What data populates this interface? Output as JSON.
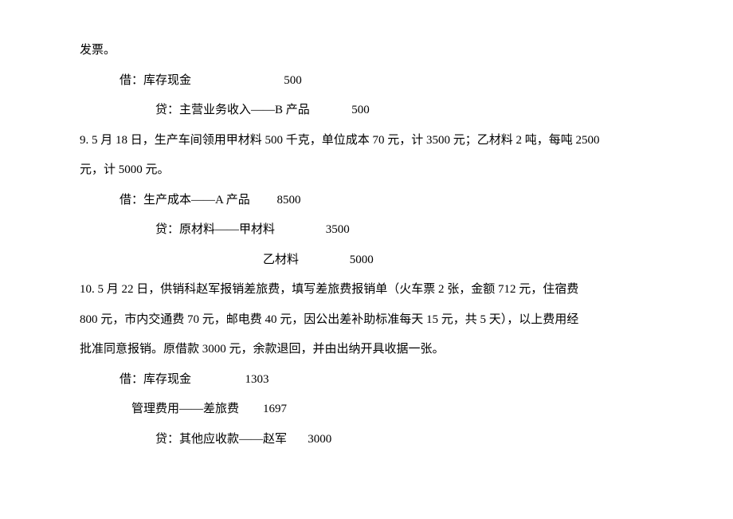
{
  "line1": "发票。",
  "entry_a": {
    "debit": {
      "label": "借：库存现金",
      "amount": "500"
    },
    "credit": {
      "label": "贷：主营业务收入——B 产品",
      "amount": "500"
    }
  },
  "line4": "9. 5 月 18 日，生产车间领用甲材料 500 千克，单位成本 70 元，计 3500 元；乙材料 2 吨，每吨 2500",
  "line5": "元，计 5000 元。",
  "entry_b": {
    "debit": {
      "label": "借：生产成本——A 产品",
      "amount": "8500"
    },
    "credit1": {
      "label": "贷：原材料——甲材料",
      "amount": "3500"
    },
    "credit2": {
      "label": "乙材料",
      "amount": "5000"
    }
  },
  "line9": "10. 5 月 22 日，供销科赵军报销差旅费，填写差旅费报销单（火车票 2 张，金额 712 元，住宿费",
  "line10": "800 元，市内交通费 70 元，邮电费 40 元，因公出差补助标准每天 15 元，共 5 天），以上费用经",
  "line11": "批准同意报销。原借款 3000 元，余款退回，并由出纳开具收据一张。",
  "entry_c": {
    "debit1": {
      "label": "借：库存现金",
      "amount": "1303"
    },
    "debit2": {
      "label": "管理费用——差旅费",
      "amount": "1697"
    },
    "credit": {
      "label": "贷：其他应收款——赵军",
      "amount": "3000"
    }
  }
}
